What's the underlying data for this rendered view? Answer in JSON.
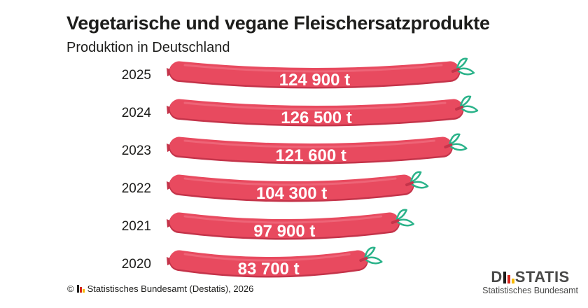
{
  "chart_data": {
    "type": "bar",
    "orientation": "horizontal",
    "title": "Vegetarische und vegane Fleischersatzprodukte",
    "subtitle": "Produktion in Deutschland",
    "categories": [
      "2025",
      "2024",
      "2023",
      "2022",
      "2021",
      "2020"
    ],
    "values": [
      124900,
      126500,
      121600,
      104300,
      97900,
      83700
    ],
    "value_labels": [
      "124 900 t",
      "126 500 t",
      "121 600 t",
      "104 300 t",
      "97 900 t",
      "83 700 t"
    ],
    "unit": "t",
    "xlim": [
      0,
      126500
    ],
    "grid": false,
    "legend": "none"
  },
  "colors": {
    "sausage": "#e84a5f",
    "sausage_shade": "#c4344a",
    "sausage_highlight": "#f27a8a",
    "leaf": "#2bb38a",
    "text": "#1d1d1b",
    "value_text": "#ffffff",
    "flag_black": "#1d1d1b",
    "flag_red": "#d7261e",
    "flag_gold": "#f5b800"
  },
  "footer": {
    "copyright": "©",
    "source": "Statistisches Bundesamt (Destatis), 2026"
  },
  "logo": {
    "word_start": "D",
    "word_end": "STATIS",
    "subtitle": "Statistisches Bundesamt"
  }
}
